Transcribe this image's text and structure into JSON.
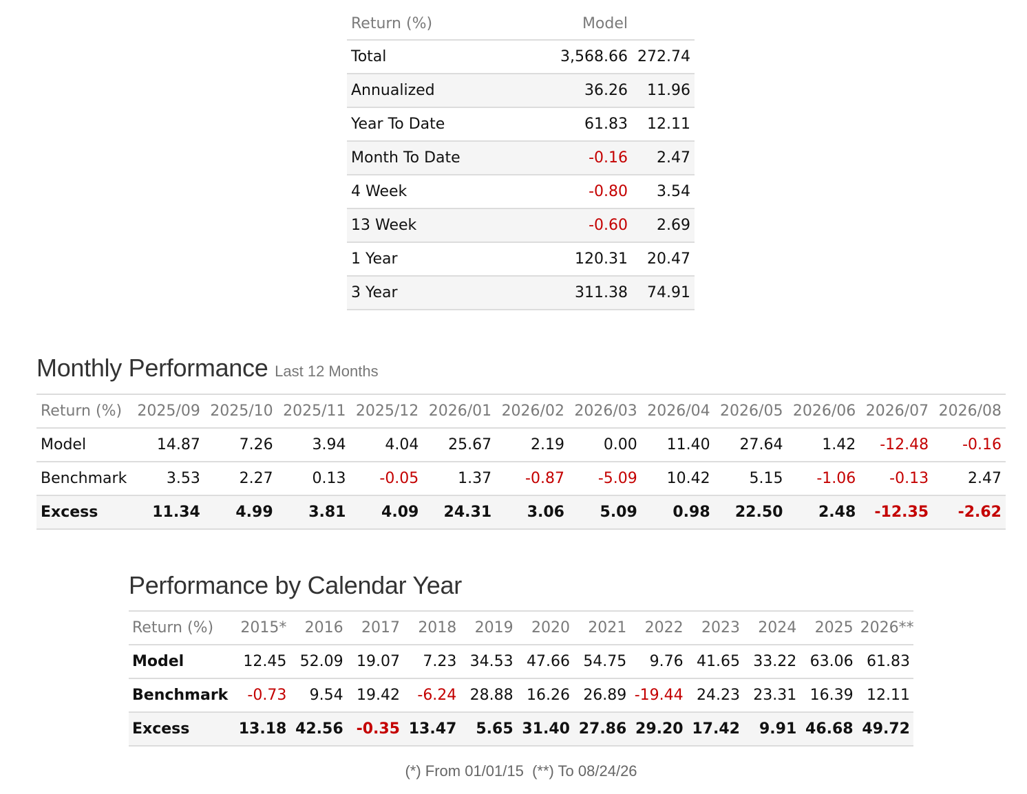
{
  "summary": {
    "headers": [
      "Return (%)",
      "Model",
      ""
    ],
    "rows": [
      {
        "label": "Total",
        "model": "3,568.66",
        "benchmark": "272.74"
      },
      {
        "label": "Annualized",
        "model": "36.26",
        "benchmark": "11.96"
      },
      {
        "label": "Year To Date",
        "model": "61.83",
        "benchmark": "12.11"
      },
      {
        "label": "Month To Date",
        "model": "-0.16",
        "benchmark": "2.47"
      },
      {
        "label": "4 Week",
        "model": "-0.80",
        "benchmark": "3.54"
      },
      {
        "label": "13 Week",
        "model": "-0.60",
        "benchmark": "2.69"
      },
      {
        "label": "1 Year",
        "model": "120.31",
        "benchmark": "20.47"
      },
      {
        "label": "3 Year",
        "model": "311.38",
        "benchmark": "74.91"
      }
    ]
  },
  "monthly": {
    "title": "Monthly Performance",
    "subtitle": "Last 12 Months",
    "header_label": "Return (%)",
    "columns": [
      "2025/09",
      "2025/10",
      "2025/11",
      "2025/12",
      "2026/01",
      "2026/02",
      "2026/03",
      "2026/04",
      "2026/05",
      "2026/06",
      "2026/07",
      "2026/08"
    ],
    "rows": [
      {
        "label": "Model",
        "values": [
          "14.87",
          "7.26",
          "3.94",
          "4.04",
          "25.67",
          "2.19",
          "0.00",
          "11.40",
          "27.64",
          "1.42",
          "-12.48",
          "-0.16"
        ]
      },
      {
        "label": "Benchmark",
        "values": [
          "3.53",
          "2.27",
          "0.13",
          "-0.05",
          "1.37",
          "-0.87",
          "-5.09",
          "10.42",
          "5.15",
          "-1.06",
          "-0.13",
          "2.47"
        ]
      },
      {
        "label": "Excess",
        "values": [
          "11.34",
          "4.99",
          "3.81",
          "4.09",
          "24.31",
          "3.06",
          "5.09",
          "0.98",
          "22.50",
          "2.48",
          "-12.35",
          "-2.62"
        ]
      }
    ]
  },
  "yearly": {
    "title": "Performance by Calendar Year",
    "header_label": "Return (%)",
    "columns": [
      "2015*",
      "2016",
      "2017",
      "2018",
      "2019",
      "2020",
      "2021",
      "2022",
      "2023",
      "2024",
      "2025",
      "2026**"
    ],
    "rows": [
      {
        "label": "Model",
        "values": [
          "12.45",
          "52.09",
          "19.07",
          "7.23",
          "34.53",
          "47.66",
          "54.75",
          "9.76",
          "41.65",
          "33.22",
          "63.06",
          "61.83"
        ]
      },
      {
        "label": "Benchmark",
        "values": [
          "-0.73",
          "9.54",
          "19.42",
          "-6.24",
          "28.88",
          "16.26",
          "26.89",
          "-19.44",
          "24.23",
          "23.31",
          "16.39",
          "12.11"
        ]
      },
      {
        "label": "Excess",
        "values": [
          "13.18",
          "42.56",
          "-0.35",
          "13.47",
          "5.65",
          "31.40",
          "27.86",
          "29.20",
          "17.42",
          "9.91",
          "46.68",
          "49.72"
        ]
      }
    ],
    "footnote": "(*) From 01/01/15  (**) To 08/24/26"
  },
  "colors": {
    "negative": "#c40000",
    "header_text": "#7a7a7a",
    "row_shade": "#f5f5f5",
    "border": "#dcdcdc"
  }
}
